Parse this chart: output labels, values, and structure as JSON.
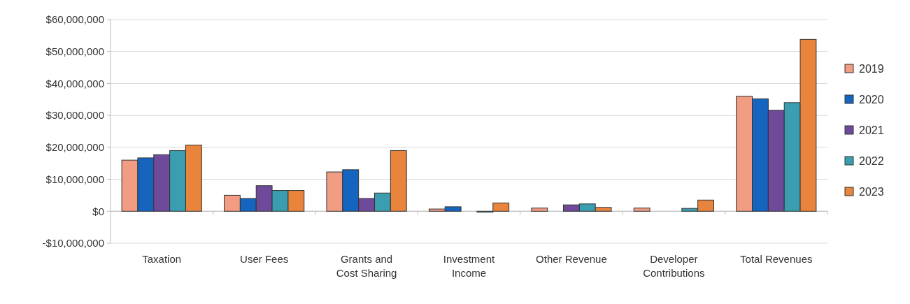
{
  "chart_data": {
    "type": "bar",
    "categories": [
      "Taxation",
      "User Fees",
      "Grants and Cost Sharing",
      "Investment Income",
      "Other Revenue",
      "Developer Contributions",
      "Total Revenues"
    ],
    "series": [
      {
        "name": "2019",
        "color": "#f19c83",
        "values": [
          16000000,
          5000000,
          12300000,
          700000,
          1000000,
          1000000,
          36000000
        ]
      },
      {
        "name": "2020",
        "color": "#1565c0",
        "values": [
          16700000,
          4000000,
          13000000,
          1400000,
          null,
          0,
          35200000
        ]
      },
      {
        "name": "2021",
        "color": "#6f4a9a",
        "values": [
          17700000,
          8000000,
          4000000,
          0,
          2000000,
          0,
          31600000
        ]
      },
      {
        "name": "2022",
        "color": "#3a9eb0",
        "values": [
          19000000,
          6500000,
          5700000,
          -300000,
          2300000,
          900000,
          34000000
        ]
      },
      {
        "name": "2023",
        "color": "#e8843c",
        "values": [
          20700000,
          6500000,
          19000000,
          2600000,
          1200000,
          3500000,
          53800000
        ]
      }
    ],
    "ylim": [
      -10000000,
      60000000
    ],
    "yticks": [
      {
        "value": -10000000,
        "label": "-$10,000,000"
      },
      {
        "value": 0,
        "label": "$0"
      },
      {
        "value": 10000000,
        "label": "$10,000,000"
      },
      {
        "value": 20000000,
        "label": "$20,000,000"
      },
      {
        "value": 30000000,
        "label": "$30,000,000"
      },
      {
        "value": 40000000,
        "label": "$40,000,000"
      },
      {
        "value": 50000000,
        "label": "$50,000,000"
      },
      {
        "value": 60000000,
        "label": "$60,000,000"
      }
    ],
    "grid": "y",
    "legend": "right"
  }
}
